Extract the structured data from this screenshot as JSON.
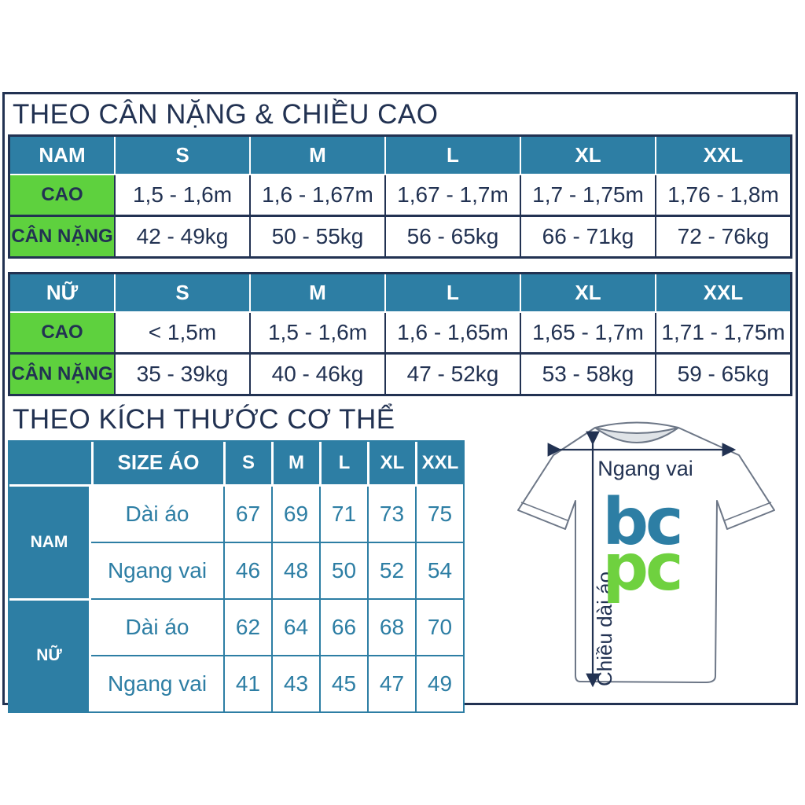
{
  "colors": {
    "navy": "#223252",
    "teal": "#2d7ea4",
    "green": "#5ed13e",
    "header_text": "#ffffff",
    "logo_blue": "#2d7ea4",
    "logo_green": "#6fd13f",
    "collar_gray": "#dfe3e7",
    "shirt_outline": "#6d7787"
  },
  "section1": {
    "title": "THEO CÂN NẶNG & CHIỀU CAO",
    "tables": [
      {
        "group_label": "NAM",
        "size_headers": [
          "S",
          "M",
          "L",
          "XL",
          "XXL"
        ],
        "rows": [
          {
            "label": "CAO",
            "values": [
              "1,5 - 1,6m",
              "1,6 - 1,67m",
              "1,67 - 1,7m",
              "1,7 - 1,75m",
              "1,76 - 1,8m"
            ]
          },
          {
            "label": "CÂN NẶNG",
            "values": [
              "42 - 49kg",
              "50 - 55kg",
              "56 - 65kg",
              "66 - 71kg",
              "72 - 76kg"
            ]
          }
        ]
      },
      {
        "group_label": "NỮ",
        "size_headers": [
          "S",
          "M",
          "L",
          "XL",
          "XXL"
        ],
        "rows": [
          {
            "label": "CAO",
            "values": [
              "< 1,5m",
              "1,5 - 1,6m",
              "1,6 - 1,65m",
              "1,65 - 1,7m",
              "1,71 - 1,75m"
            ]
          },
          {
            "label": "CÂN NẶNG",
            "values": [
              "35 - 39kg",
              "40 - 46kg",
              "47 - 52kg",
              "53 - 58kg",
              "59 - 65kg"
            ]
          }
        ]
      }
    ]
  },
  "section2": {
    "title": "THEO KÍCH THƯỚC CƠ THỂ",
    "table": {
      "corner_label": "",
      "col_header": "SIZE ÁO",
      "size_headers": [
        "S",
        "M",
        "L",
        "XL",
        "XXL"
      ],
      "groups": [
        {
          "label": "NAM",
          "rows": [
            {
              "label": "Dài áo",
              "values": [
                "67",
                "69",
                "71",
                "73",
                "75"
              ]
            },
            {
              "label": "Ngang vai",
              "values": [
                "46",
                "48",
                "50",
                "52",
                "54"
              ]
            }
          ]
        },
        {
          "label": "NỮ",
          "rows": [
            {
              "label": "Dài áo",
              "values": [
                "62",
                "64",
                "66",
                "68",
                "70"
              ]
            },
            {
              "label": "Ngang vai",
              "values": [
                "41",
                "43",
                "45",
                "47",
                "49"
              ]
            }
          ]
        }
      ]
    }
  },
  "diagram": {
    "shoulder_label": "Ngang vai",
    "length_label": "Chiều dài áo",
    "logo_line1": "bc",
    "logo_line2": "pc",
    "logo_color1": "#2d7ea4",
    "logo_color2": "#6fd13f"
  }
}
